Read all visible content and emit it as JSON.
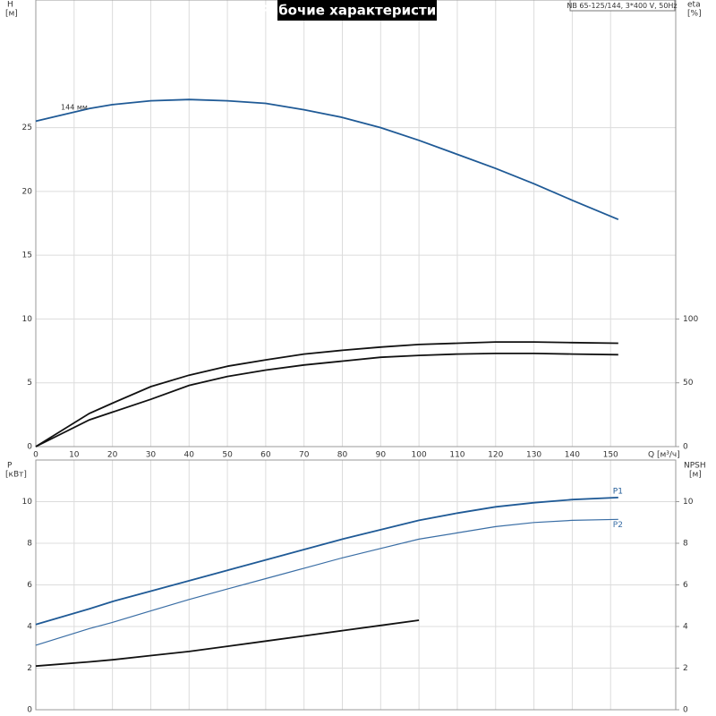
{
  "chart_data": [
    {
      "type": "line",
      "title": "Рабочие характеристики",
      "subtitle": "NB 65-125/144, 3*400 V, 50Hz",
      "ylabel": "H",
      "yunits": "[м]",
      "y2label": "eta",
      "y2units": "[%]",
      "xlabel": "Q [м³/ч]",
      "x": [
        0,
        14,
        20,
        30,
        40,
        50,
        60,
        70,
        80,
        90,
        100,
        110,
        120,
        130,
        140,
        152
      ],
      "xlim": [
        0,
        167
      ],
      "xticks": [
        0,
        10,
        20,
        30,
        40,
        50,
        60,
        70,
        80,
        90,
        100,
        110,
        120,
        130,
        140,
        150
      ],
      "ylim": [
        0,
        35
      ],
      "yticks": [
        0,
        5,
        10,
        15,
        20,
        25
      ],
      "y2lim": [
        0,
        350
      ],
      "y2ticks": [
        0,
        50,
        100
      ],
      "grid": true,
      "series": [
        {
          "name": "144 мм",
          "color": "#1f5a96",
          "values": [
            25.5,
            26.5,
            26.8,
            27.1,
            27.2,
            27.1,
            26.9,
            26.4,
            25.8,
            25.0,
            24.0,
            22.9,
            21.8,
            20.6,
            19.3,
            17.8
          ]
        },
        {
          "color": "#111111",
          "axis": "y2",
          "values": [
            0,
            26,
            34,
            47,
            56,
            63,
            68,
            72.5,
            75.5,
            78,
            80,
            81,
            82,
            82,
            81.5,
            81
          ]
        },
        {
          "color": "#111111",
          "axis": "y2",
          "values": [
            0,
            21,
            27,
            37,
            48,
            55,
            60,
            64,
            67,
            70,
            71.5,
            72.5,
            73,
            73,
            72.5,
            72
          ]
        }
      ]
    },
    {
      "type": "line",
      "ylabel": "P",
      "yunits": "[кВт]",
      "y2label": "NPSH",
      "y2units": "[м]",
      "x": [
        0,
        14,
        20,
        30,
        40,
        50,
        60,
        70,
        80,
        90,
        100,
        110,
        120,
        130,
        140,
        152
      ],
      "xlim": [
        0,
        167
      ],
      "ylim": [
        0,
        12
      ],
      "yticks": [
        0,
        2,
        4,
        6,
        8,
        10
      ],
      "y2lim": [
        0,
        12
      ],
      "y2ticks": [
        0,
        2,
        4,
        6,
        8,
        10
      ],
      "grid": true,
      "series": [
        {
          "name": "P1",
          "color": "#1f5a96",
          "values": [
            4.1,
            4.85,
            5.2,
            5.7,
            6.2,
            6.7,
            7.2,
            7.7,
            8.2,
            8.65,
            9.1,
            9.45,
            9.75,
            9.95,
            10.1,
            10.2
          ]
        },
        {
          "name": "P2",
          "color": "#3a6ea5",
          "values": [
            3.1,
            3.9,
            4.2,
            4.75,
            5.3,
            5.8,
            6.3,
            6.8,
            7.3,
            7.75,
            8.2,
            8.5,
            8.8,
            9.0,
            9.1,
            9.15
          ]
        },
        {
          "color": "#111111",
          "axis": "y2",
          "values": [
            2.1,
            2.3,
            2.4,
            2.6,
            2.8,
            3.05,
            3.3,
            3.55,
            3.8,
            4.05,
            4.3,
            null,
            null,
            null,
            null,
            null
          ]
        }
      ]
    }
  ]
}
